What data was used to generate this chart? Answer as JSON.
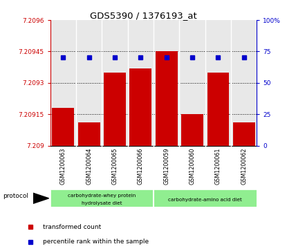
{
  "title": "GDS5390 / 1376193_at",
  "samples": [
    "GSM1200063",
    "GSM1200064",
    "GSM1200065",
    "GSM1200066",
    "GSM1200059",
    "GSM1200060",
    "GSM1200061",
    "GSM1200062"
  ],
  "red_values": [
    7.20918,
    7.20911,
    7.20935,
    7.20937,
    7.20945,
    7.20915,
    7.20935,
    7.20911
  ],
  "blue_values": [
    70,
    70,
    70,
    70,
    70,
    70,
    70,
    70
  ],
  "ylim_left": [
    7.209,
    7.2096
  ],
  "ylim_right": [
    0,
    100
  ],
  "yticks_left": [
    7.209,
    7.20915,
    7.2093,
    7.20945,
    7.2096
  ],
  "yticks_right": [
    0,
    25,
    50,
    75,
    100
  ],
  "ytick_labels_left": [
    "7.209",
    "7.20915",
    "7.2093",
    "7.20945",
    "7.2096"
  ],
  "ytick_labels_right": [
    "0",
    "25",
    "50",
    "75",
    "100%"
  ],
  "group1_label_line1": "carbohydrate-whey protein",
  "group1_label_line2": "hydrolysate diet",
  "group2_label": "carbohydrate-amino acid diet",
  "group1_count": 4,
  "group2_count": 4,
  "bar_color": "#CC0000",
  "dot_color": "#0000CC",
  "background_color": "#E8E8E8",
  "left_axis_color": "#CC0000",
  "right_axis_color": "#0000CC",
  "green_color": "#90EE90",
  "gray_color": "#C8C8C8",
  "legend_bar_label": "transformed count",
  "legend_dot_label": "percentile rank within the sample",
  "protocol_label": "protocol"
}
